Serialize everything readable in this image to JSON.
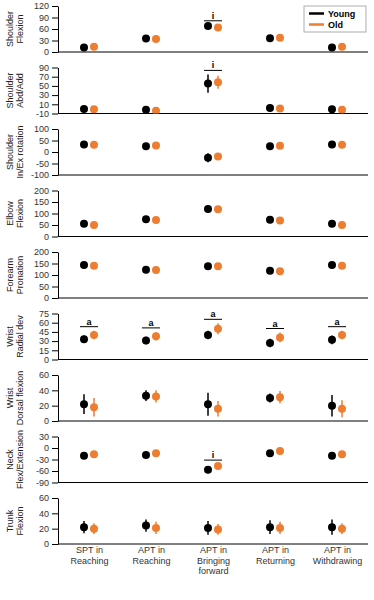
{
  "chart_data": [
    {
      "type": "scatter",
      "y_label": "Shoulder Flexion",
      "legend": "top right",
      "tick_labels": "y",
      "marker": "circle",
      "categories": [
        "SPT in Reaching",
        "APT in Reaching",
        "APT in Bringing forward",
        "APT in Returning",
        "APT in Withdrawing"
      ],
      "ylim": [
        0,
        120
      ],
      "yticks": [
        0,
        30,
        60,
        90,
        120
      ],
      "series": [
        {
          "name": "Young",
          "color": "#000000",
          "values": [
            12,
            35,
            68,
            36,
            12
          ],
          "errors": [
            3,
            4,
            3,
            4,
            3
          ]
        },
        {
          "name": "Old",
          "color": "#ed7d31",
          "values": [
            14,
            34,
            64,
            37,
            14
          ],
          "errors": [
            5,
            3,
            3,
            4,
            5
          ]
        }
      ],
      "annotations": [
        {
          "text": "i",
          "category": "APT in Bringing forward"
        }
      ]
    },
    {
      "type": "scatter",
      "y_label": "Shoulder Abd/Add",
      "tick_labels": "y",
      "marker": "circle",
      "categories": [
        "SPT in Reaching",
        "APT in Reaching",
        "APT in Bringing forward",
        "APT in Returning",
        "APT in Withdrawing"
      ],
      "ylim": [
        -10,
        90
      ],
      "yticks": [
        -10,
        10,
        30,
        50,
        70,
        90
      ],
      "series": [
        {
          "color": "#000000",
          "values": [
            0,
            -2,
            55,
            2,
            -1
          ],
          "errors": [
            2,
            2,
            20,
            2,
            2
          ]
        },
        {
          "color": "#ed7d31",
          "values": [
            -1,
            -4,
            58,
            1,
            -2
          ],
          "errors": [
            2,
            2,
            14,
            2,
            2
          ]
        }
      ],
      "annotations": [
        {
          "text": "i",
          "category": "APT in Bringing forward"
        }
      ]
    },
    {
      "type": "scatter",
      "y_label": "Shoulder In/Ex rotation",
      "tick_labels": "y",
      "marker": "circle",
      "categories": [
        "SPT in Reaching",
        "APT in Reaching",
        "APT in Bringing forward",
        "APT in Returning",
        "APT in Withdrawing"
      ],
      "ylim": [
        -100,
        100
      ],
      "yticks": [
        -100,
        -50,
        0,
        50,
        100
      ],
      "series": [
        {
          "color": "#000000",
          "values": [
            33,
            25,
            -25,
            25,
            33
          ],
          "errors": [
            4,
            4,
            20,
            4,
            4
          ]
        },
        {
          "color": "#ed7d31",
          "values": [
            32,
            28,
            -20,
            27,
            32
          ],
          "errors": [
            4,
            4,
            15,
            4,
            4
          ]
        }
      ]
    },
    {
      "type": "scatter",
      "y_label": "Elbow Flexion",
      "tick_labels": "y",
      "marker": "circle",
      "categories": [
        "SPT in Reaching",
        "APT in Reaching",
        "APT in Bringing forward",
        "APT in Returning",
        "APT in Withdrawing"
      ],
      "ylim": [
        0,
        200
      ],
      "yticks": [
        0,
        50,
        100,
        150,
        200
      ],
      "series": [
        {
          "color": "#000000",
          "values": [
            55,
            75,
            120,
            73,
            55
          ],
          "errors": [
            8,
            6,
            7,
            6,
            8
          ]
        },
        {
          "color": "#ed7d31",
          "values": [
            50,
            72,
            118,
            70,
            50
          ],
          "errors": [
            7,
            5,
            6,
            6,
            7
          ]
        }
      ]
    },
    {
      "type": "scatter",
      "y_label": "Forearm Pronation",
      "tick_labels": "y",
      "marker": "circle",
      "categories": [
        "SPT in Reaching",
        "APT in Reaching",
        "APT in Bringing forward",
        "APT in Returning",
        "APT in Withdrawing"
      ],
      "ylim": [
        0,
        200
      ],
      "yticks": [
        0,
        50,
        100,
        150,
        200
      ],
      "series": [
        {
          "color": "#000000",
          "values": [
            143,
            123,
            138,
            118,
            143
          ],
          "errors": [
            6,
            5,
            6,
            6,
            6
          ]
        },
        {
          "color": "#ed7d31",
          "values": [
            140,
            122,
            138,
            116,
            140
          ],
          "errors": [
            6,
            5,
            6,
            6,
            6
          ]
        }
      ]
    },
    {
      "type": "scatter",
      "y_label": "Wrist Radial dev",
      "tick_labels": "y",
      "marker": "circle",
      "categories": [
        "SPT in Reaching",
        "APT in Reaching",
        "APT in Bringing forward",
        "APT in Returning",
        "APT in Withdrawing"
      ],
      "ylim": [
        0,
        75
      ],
      "yticks": [
        0,
        15,
        30,
        45,
        60,
        75
      ],
      "series": [
        {
          "color": "#000000",
          "values": [
            33,
            31,
            40,
            27,
            32
          ],
          "errors": [
            6,
            6,
            7,
            7,
            7
          ]
        },
        {
          "color": "#ed7d31",
          "values": [
            40,
            38,
            50,
            36,
            40
          ],
          "errors": [
            7,
            7,
            9,
            8,
            7
          ]
        }
      ],
      "annotations": [
        {
          "text": "a",
          "category": "SPT in Reaching"
        },
        {
          "text": "a",
          "category": "APT in Reaching"
        },
        {
          "text": "a",
          "category": "APT in Bringing forward"
        },
        {
          "text": "a",
          "category": "APT in Returning"
        },
        {
          "text": "a",
          "category": "APT in Withdrawing"
        }
      ]
    },
    {
      "type": "scatter",
      "y_label": "Wrist Dorsal flexion",
      "tick_labels": "y",
      "marker": "circle",
      "categories": [
        "SPT in Reaching",
        "APT in Reaching",
        "APT in Bringing forward",
        "APT in Returning",
        "APT in Withdrawing"
      ],
      "ylim": [
        0,
        60
      ],
      "yticks": [
        0,
        20,
        40,
        60
      ],
      "series": [
        {
          "color": "#000000",
          "values": [
            22,
            33,
            22,
            30,
            20
          ],
          "errors": [
            13,
            7,
            15,
            6,
            14
          ]
        },
        {
          "color": "#ed7d31",
          "values": [
            18,
            32,
            16,
            31,
            16
          ],
          "errors": [
            12,
            8,
            10,
            8,
            11
          ]
        }
      ]
    },
    {
      "type": "scatter",
      "y_label": "Neck Flex/Extension",
      "tick_labels": "y",
      "marker": "circle",
      "categories": [
        "SPT in Reaching",
        "APT in Reaching",
        "APT in Bringing forward",
        "APT in Returning",
        "APT in Withdrawing"
      ],
      "ylim": [
        -90,
        30
      ],
      "yticks": [
        -90,
        -60,
        -30,
        0,
        30
      ],
      "series": [
        {
          "color": "#000000",
          "values": [
            -20,
            -18,
            -57,
            -14,
            -20
          ],
          "errors": [
            5,
            4,
            6,
            4,
            5
          ]
        },
        {
          "color": "#ed7d31",
          "values": [
            -16,
            -14,
            -47,
            -8,
            -16
          ],
          "errors": [
            5,
            4,
            5,
            4,
            5
          ]
        }
      ],
      "annotations": [
        {
          "text": "i",
          "category": "APT in Bringing forward"
        }
      ]
    },
    {
      "type": "scatter",
      "y_label": "Trunk Flexion",
      "marker": "circle",
      "categories": [
        "SPT in Reaching",
        "APT in Reaching",
        "APT in Bringing forward",
        "APT in Returning",
        "APT in Withdrawing"
      ],
      "ylim": [
        0,
        60
      ],
      "yticks": [
        0,
        20,
        40,
        60
      ],
      "series": [
        {
          "color": "#000000",
          "values": [
            22,
            24,
            21,
            22,
            22
          ],
          "errors": [
            8,
            8,
            9,
            9,
            10
          ]
        },
        {
          "color": "#ed7d31",
          "values": [
            20,
            21,
            19,
            21,
            20
          ],
          "errors": [
            7,
            8,
            7,
            8,
            7
          ]
        }
      ]
    }
  ]
}
